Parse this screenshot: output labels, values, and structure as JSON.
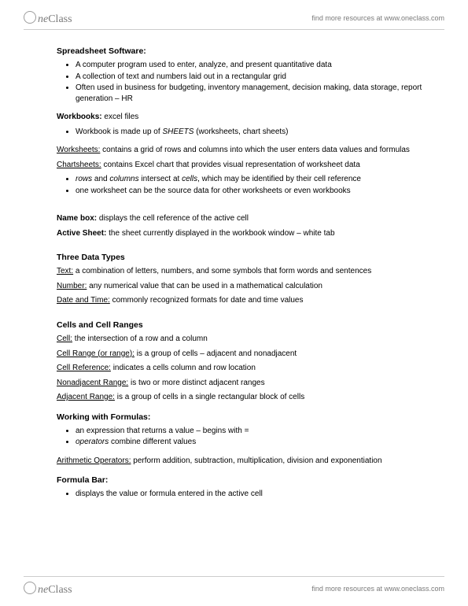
{
  "header": {
    "logo_one": "ne",
    "logo_class": "Class",
    "resources_text": "find more resources at www.oneclass.com"
  },
  "footer": {
    "logo_one": "ne",
    "logo_class": "Class",
    "resources_text": "find more resources at www.oneclass.com"
  },
  "s1": {
    "title": "Spreadsheet Software:",
    "b1": "A computer program used to enter, analyze, and present quantitative data",
    "b2": "A collection of text and numbers laid out in a rectangular grid",
    "b3": "Often used in business for budgeting, inventory management, decision making, data storage, report generation – HR"
  },
  "s2": {
    "term": "Workbooks:",
    "rest": " excel files",
    "b1_a": "Workbook is made up of ",
    "b1_b": "SHEETS",
    "b1_c": " (worksheets, chart sheets)"
  },
  "s3": {
    "term": "Worksheets:",
    "rest": " contains a grid of rows and columns into which the user enters data values and formulas"
  },
  "s4": {
    "term": "Chartsheets:",
    "rest": " contains Excel chart that provides visual representation of worksheet data",
    "b1_a": "rows",
    "b1_b": " and ",
    "b1_c": "columns",
    "b1_d": " intersect at ",
    "b1_e": "cells",
    "b1_f": ", which may be identified by their cell reference",
    "b2": "one worksheet can be the source data for other worksheets or even workbooks"
  },
  "s5": {
    "term": "Name box:",
    "rest": " displays the cell reference of the active cell"
  },
  "s6": {
    "term": "Active Sheet:",
    "rest": " the sheet currently displayed in the workbook window – white tab"
  },
  "s7": {
    "title": "Three Data Types",
    "t1_term": "Text:",
    "t1_rest": " a combination of letters, numbers, and some symbols that form words and sentences",
    "t2_term": "Number:",
    "t2_rest": " any numerical value that can be used in a mathematical calculation",
    "t3_term": "Date and Time:",
    "t3_rest": " commonly recognized formats for date and time values"
  },
  "s8": {
    "title": "Cells and Cell Ranges",
    "c1_term": "Cell:",
    "c1_rest": " the intersection of a row and a column",
    "c2_term": "Cell Range (or range):",
    "c2_rest": " is a group of cells – adjacent and nonadjacent",
    "c3_term": "Cell Reference:",
    "c3_rest": " indicates a cells column and row location",
    "c4_term": "Nonadjacent Range:",
    "c4_rest": " is two or more distinct adjacent ranges",
    "c5_term": "Adjacent Range:",
    "c5_rest": " is a group of cells in a single rectangular block of cells"
  },
  "s9": {
    "title": "Working with Formulas:",
    "b1": "an expression that returns a value – begins with =",
    "b2_a": "operators",
    "b2_b": " combine different values"
  },
  "s10": {
    "term": "Arithmetic Operators:",
    "rest": " perform addition, subtraction, multiplication, division and exponentiation"
  },
  "s11": {
    "title": "Formula Bar:",
    "b1": "displays the value or formula entered in the active cell"
  }
}
